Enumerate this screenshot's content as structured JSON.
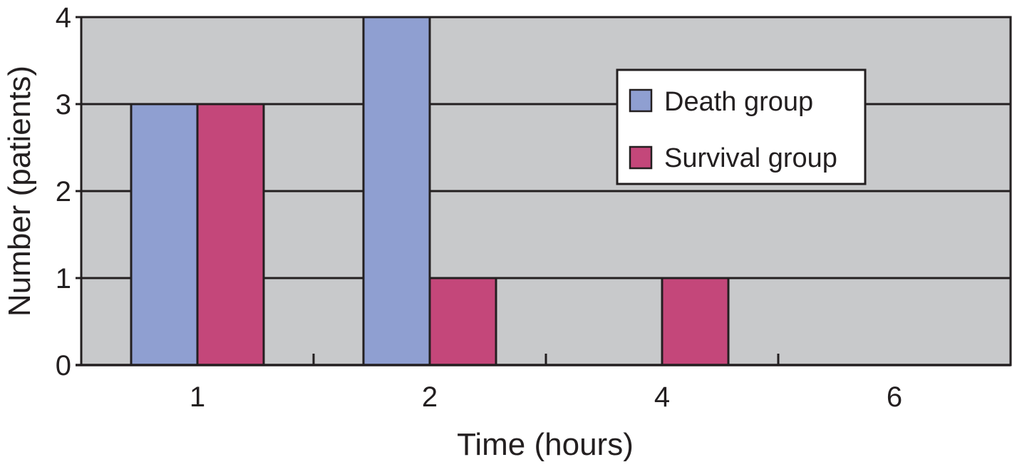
{
  "chart_data": {
    "type": "bar",
    "title": "",
    "xlabel": "Time (hours)",
    "ylabel": "Number (patients)",
    "categories": [
      "1",
      "2",
      "4",
      "6"
    ],
    "series": [
      {
        "name": "Death group",
        "values": [
          3,
          4,
          0,
          0
        ],
        "color": "#8f9fd1"
      },
      {
        "name": "Survival group",
        "values": [
          3,
          1,
          1,
          0
        ],
        "color": "#c4477a"
      }
    ],
    "ylim": [
      0,
      4
    ],
    "yticks": [
      "0",
      "1",
      "2",
      "3",
      "4"
    ],
    "grid": true,
    "legend": {
      "placement": "upper-center-right"
    },
    "colors": {
      "plot_background": "#c8c9cb",
      "axis": "#231f20",
      "gridline": "#231f20"
    }
  }
}
